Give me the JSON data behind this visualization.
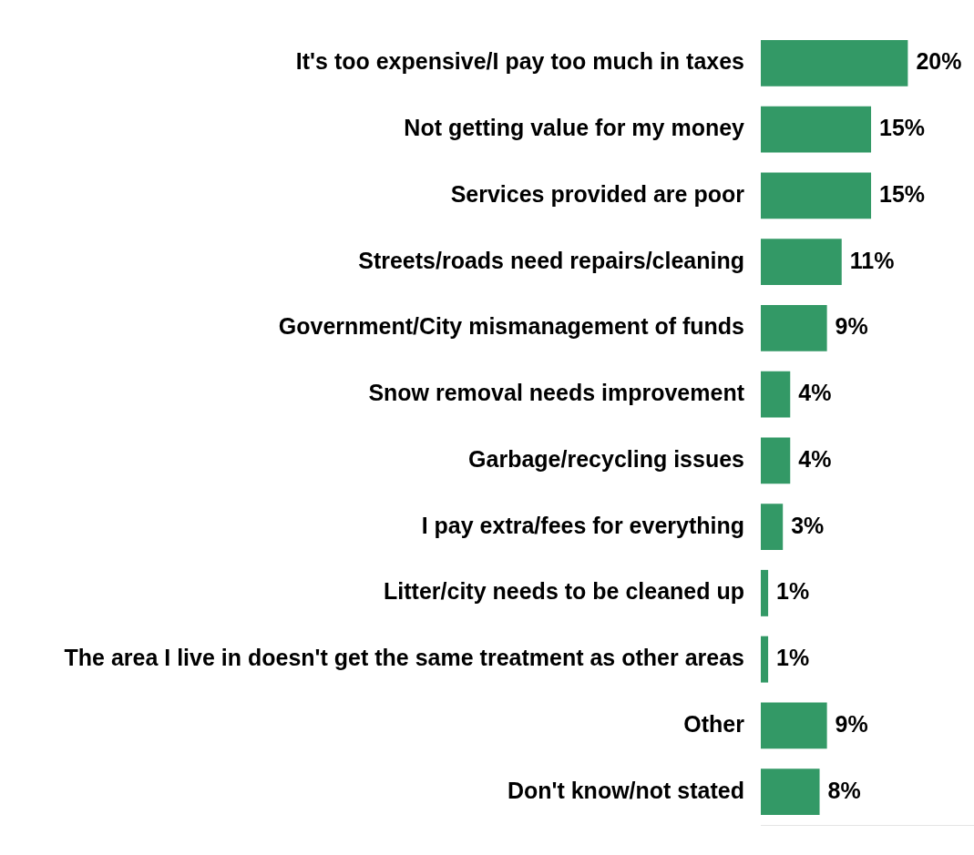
{
  "chart_data": {
    "type": "bar",
    "orientation": "horizontal",
    "color": "#339966",
    "xlim": [
      0,
      29
    ],
    "categories": [
      "It's too expensive/I pay too much in taxes",
      "Not getting value for my money",
      "Services provided are poor",
      "Streets/roads need repairs/cleaning",
      "Government/City mismanagement of funds",
      "Snow removal needs improvement",
      "Garbage/recycling issues",
      "I pay extra/fees for everything",
      "Litter/city needs to be cleaned up",
      "The area I live in doesn't get the same treatment as other areas",
      "Other",
      "Don't know/not stated"
    ],
    "values": [
      20,
      15,
      15,
      11,
      9,
      4,
      4,
      3,
      1,
      1,
      9,
      8
    ],
    "value_labels": [
      "20%",
      "15%",
      "15%",
      "11%",
      "9%",
      "4%",
      "4%",
      "3%",
      "1%",
      "1%",
      "9%",
      "8%"
    ],
    "grid": false,
    "legend": false
  }
}
